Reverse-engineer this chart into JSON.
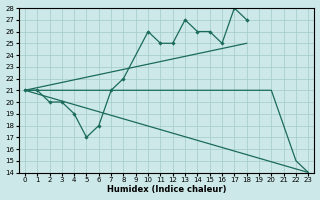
{
  "xlabel": "Humidex (Indice chaleur)",
  "xlim": [
    -0.5,
    23.5
  ],
  "ylim": [
    14,
    28
  ],
  "yticks": [
    14,
    15,
    16,
    17,
    18,
    19,
    20,
    21,
    22,
    23,
    24,
    25,
    26,
    27,
    28
  ],
  "xticks": [
    0,
    1,
    2,
    3,
    4,
    5,
    6,
    7,
    8,
    9,
    10,
    11,
    12,
    13,
    14,
    15,
    16,
    17,
    18,
    19,
    20,
    21,
    22,
    23
  ],
  "bg_color": "#cde8e8",
  "grid_color": "#aacece",
  "line_color": "#1a6b5a",
  "series1_x": [
    0,
    1,
    2,
    3,
    4,
    5,
    6,
    7,
    8,
    10,
    11,
    12,
    13,
    14,
    15,
    16,
    17,
    18
  ],
  "series1_y": [
    21,
    21,
    20,
    20,
    19,
    17,
    18,
    21,
    22,
    26,
    25,
    25,
    27,
    26,
    26,
    25,
    28,
    27
  ],
  "series2_x": [
    0,
    18
  ],
  "series2_y": [
    21,
    25
  ],
  "series3_x": [
    0,
    19,
    20,
    21,
    22,
    23
  ],
  "series3_y": [
    21,
    21,
    21,
    18,
    15,
    14
  ],
  "series4_x": [
    0,
    23
  ],
  "series4_y": [
    21,
    14
  ]
}
